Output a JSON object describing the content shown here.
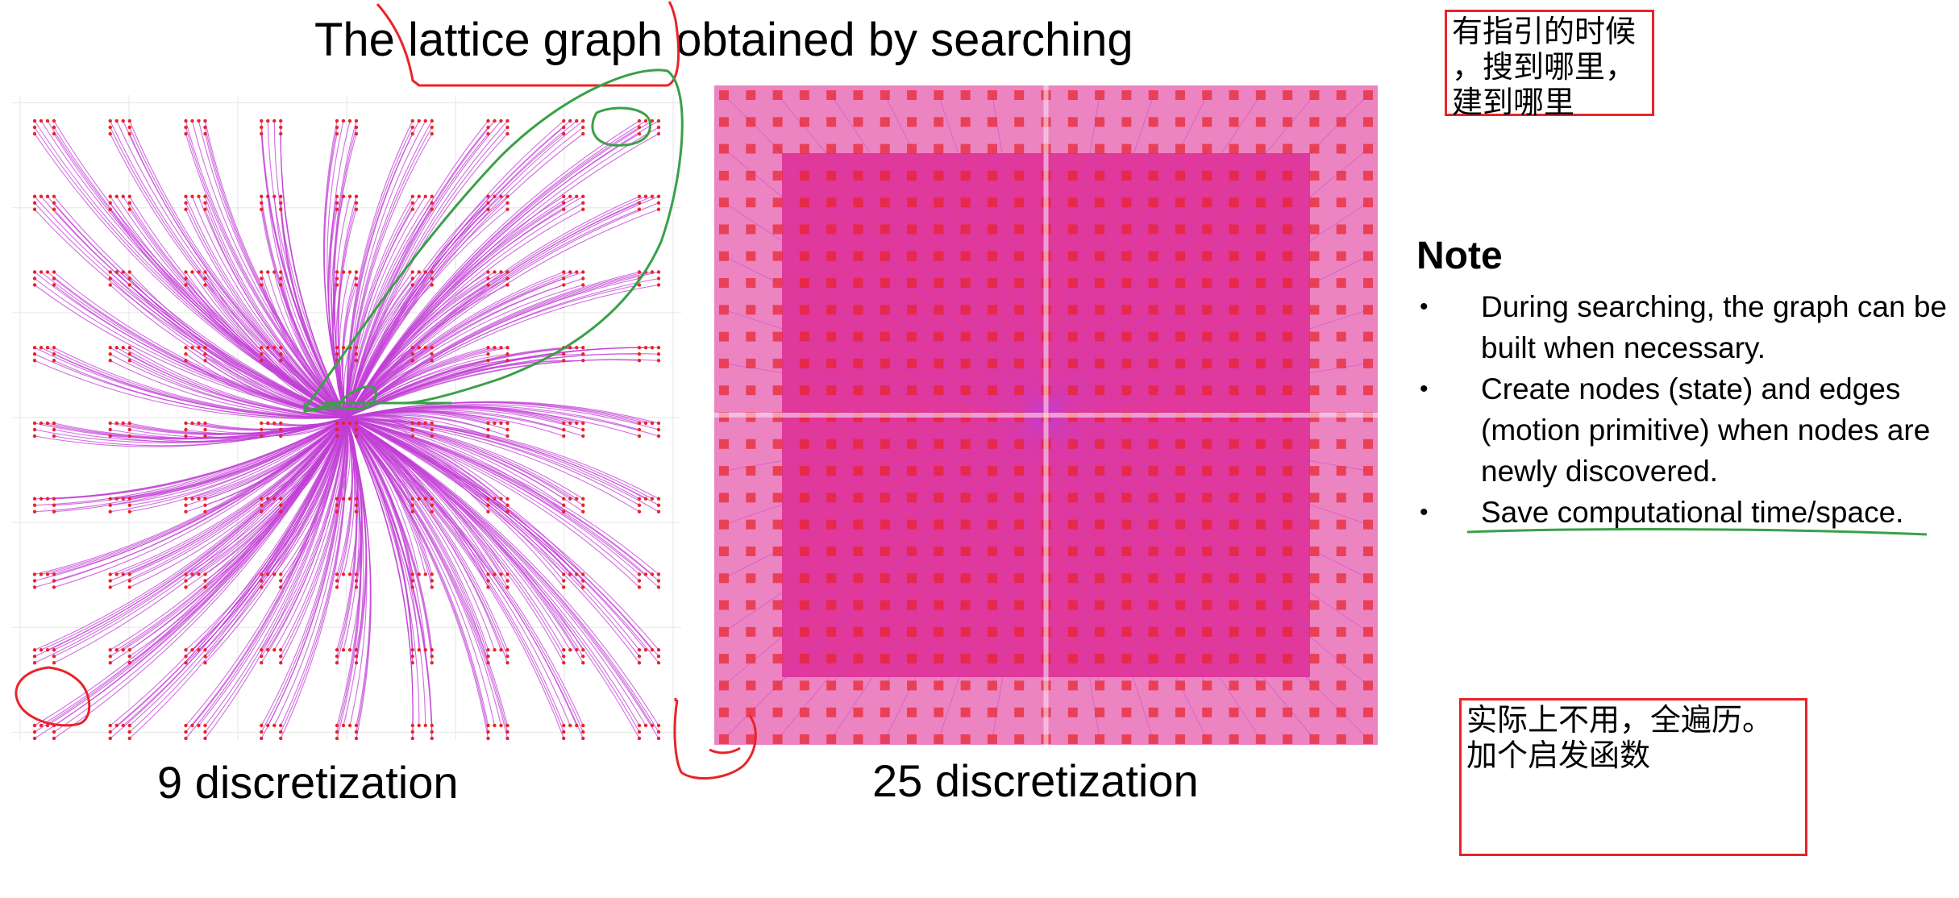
{
  "slide": {
    "title": "The lattice graph obtained by searching",
    "captions": {
      "left": "9 discretization",
      "right": "25 discretization"
    },
    "note": {
      "heading": "Note",
      "bullet_glyph": "•",
      "items": [
        "During searching, the graph can be built when necessary.",
        "Create nodes (state) and edges (motion primitive) when nodes are newly discovered.",
        "Save computational time/space."
      ]
    },
    "handwritten_notes": {
      "top": [
        "有指引的时候",
        "，搜到哪里，",
        "建到哪里"
      ],
      "bottom": [
        "实际上不用，全遍历。",
        "加个启发函数"
      ]
    },
    "colors": {
      "edge": "#c23ed6",
      "node": "#e8242a",
      "dense_fill": "#dc1f8e",
      "annotation_red": "#e8242a",
      "annotation_green": "#3aa048"
    },
    "lattice": {
      "left_grid_size": 9,
      "right_grid_size": 25
    }
  }
}
